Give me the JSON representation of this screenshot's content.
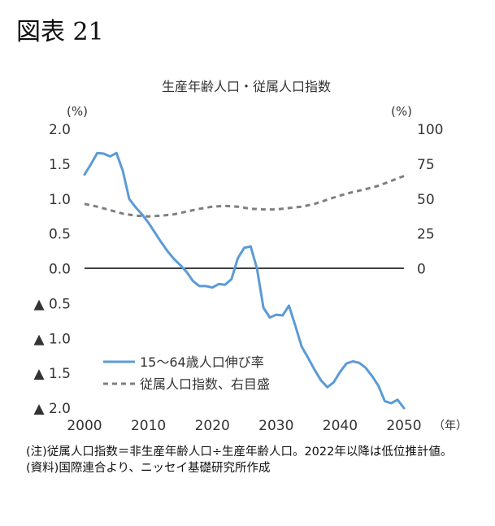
{
  "figure_label": "図表 21",
  "chart_data": {
    "type": "line",
    "title": "生産年齢人口・従属人口指数",
    "left_unit": "(%)",
    "right_unit": "(%)",
    "x_unit": "（年）",
    "x_ticks": [
      "2000",
      "2010",
      "2020",
      "2030",
      "2040",
      "2050"
    ],
    "left_ticks": [
      "2.0",
      "1.5",
      "1.0",
      "0.5",
      "0.0",
      "▲ 0.5",
      "▲ 1.0",
      "▲ 1.5",
      "▲ 2.0"
    ],
    "right_ticks": [
      "100",
      "75",
      "50",
      "25",
      "0"
    ],
    "left_ylim": [
      -2.0,
      2.0
    ],
    "right_ylim": [
      -100,
      100
    ],
    "xlim": [
      2000,
      2050
    ],
    "legend_position": "lower-left",
    "series": [
      {
        "name": "15～64歳人口伸び率",
        "axis": "left",
        "color": "#5b9bd5",
        "dash": "solid",
        "x": [
          2000,
          2001,
          2002,
          2003,
          2004,
          2005,
          2006,
          2007,
          2008,
          2009,
          2010,
          2011,
          2012,
          2013,
          2014,
          2015,
          2016,
          2017,
          2018,
          2019,
          2020,
          2021,
          2022,
          2023,
          2024,
          2025,
          2026,
          2027,
          2028,
          2029,
          2030,
          2031,
          2032,
          2033,
          2034,
          2035,
          2036,
          2037,
          2038,
          2039,
          2040,
          2041,
          2042,
          2043,
          2044,
          2045,
          2046,
          2047,
          2048,
          2049,
          2050
        ],
        "y": [
          1.35,
          1.5,
          1.66,
          1.65,
          1.61,
          1.66,
          1.4,
          1.0,
          0.88,
          0.78,
          0.66,
          0.52,
          0.38,
          0.25,
          0.14,
          0.05,
          -0.05,
          -0.18,
          -0.25,
          -0.25,
          -0.27,
          -0.22,
          -0.23,
          -0.15,
          0.15,
          0.3,
          0.32,
          0.0,
          -0.56,
          -0.7,
          -0.66,
          -0.67,
          -0.53,
          -0.82,
          -1.12,
          -1.28,
          -1.45,
          -1.6,
          -1.7,
          -1.63,
          -1.48,
          -1.36,
          -1.33,
          -1.35,
          -1.42,
          -1.54,
          -1.68,
          -1.9,
          -1.93,
          -1.88,
          -2.0
        ]
      },
      {
        "name": "従属人口指数、右目盛",
        "axis": "right",
        "color": "#7f7f7f",
        "dash": "dashed",
        "x": [
          2000,
          2002,
          2004,
          2006,
          2008,
          2010,
          2012,
          2014,
          2016,
          2018,
          2020,
          2022,
          2024,
          2026,
          2028,
          2030,
          2032,
          2034,
          2036,
          2038,
          2040,
          2042,
          2044,
          2046,
          2048,
          2050
        ],
        "y": [
          46.5,
          44.5,
          42,
          39.5,
          38,
          37.5,
          38,
          39,
          41,
          43,
          44.5,
          45,
          44.5,
          43,
          42.5,
          42.5,
          43.5,
          44.5,
          46.5,
          49.5,
          52.5,
          55,
          57,
          59.5,
          63,
          66.5
        ]
      }
    ]
  },
  "notes": [
    "(注)従属人口指数＝非生産年齢人口÷生産年齢人口。2022年以降は低位推計値。",
    "(資料)国際連合より、ニッセイ基礎研究所作成"
  ]
}
